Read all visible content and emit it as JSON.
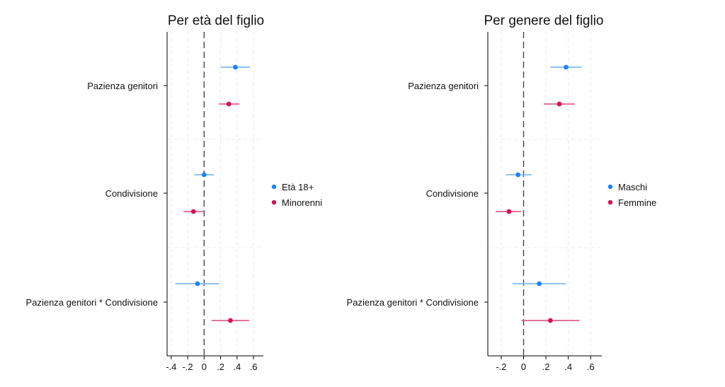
{
  "chart_data": [
    {
      "type": "scatter",
      "title": "Per età del figlio",
      "xlim": [
        -0.45,
        0.72
      ],
      "x_ticks": [
        "-.4",
        "-.2",
        "0",
        ".2",
        ".4",
        ".6"
      ],
      "x_tick_values": [
        -0.4,
        -0.2,
        0,
        0.2,
        0.4,
        0.6
      ],
      "categories": [
        "Pazienza genitori",
        "Condivisione",
        "Pazienza genitori * Condivisione"
      ],
      "reference_line": 0,
      "grid": true,
      "legend_position": "right",
      "series": [
        {
          "name": "Età 18+",
          "color": "#1a85ff",
          "ci_color": "#7fb9f5",
          "points": [
            {
              "category": "Pazienza genitori",
              "estimate": 0.38,
              "lower": 0.2,
              "upper": 0.56
            },
            {
              "category": "Condivisione",
              "estimate": 0.0,
              "lower": -0.12,
              "upper": 0.12
            },
            {
              "category": "Pazienza genitori * Condivisione",
              "estimate": -0.08,
              "lower": -0.35,
              "upper": 0.18
            }
          ]
        },
        {
          "name": "Minorenni",
          "color": "#d41159",
          "ci_color": "#e0608e",
          "points": [
            {
              "category": "Pazienza genitori",
              "estimate": 0.3,
              "lower": 0.18,
              "upper": 0.43
            },
            {
              "category": "Condivisione",
              "estimate": -0.13,
              "lower": -0.25,
              "upper": -0.01
            },
            {
              "category": "Pazienza genitori * Condivisione",
              "estimate": 0.32,
              "lower": 0.09,
              "upper": 0.55
            }
          ]
        }
      ]
    },
    {
      "type": "scatter",
      "title": "Per genere del figlio",
      "xlim": [
        -0.32,
        0.7
      ],
      "x_ticks": [
        "-.2",
        "0",
        ".2",
        ".4",
        ".6"
      ],
      "x_tick_values": [
        -0.2,
        0,
        0.2,
        0.4,
        0.6
      ],
      "categories": [
        "Pazienza genitori",
        "Condivisione",
        "Pazienza genitori * Condivisione"
      ],
      "reference_line": 0,
      "grid": true,
      "legend_position": "right",
      "series": [
        {
          "name": "Maschi",
          "color": "#1a85ff",
          "ci_color": "#7fb9f5",
          "points": [
            {
              "category": "Pazienza genitori",
              "estimate": 0.38,
              "lower": 0.24,
              "upper": 0.52
            },
            {
              "category": "Condivisione",
              "estimate": -0.05,
              "lower": -0.16,
              "upper": 0.07
            },
            {
              "category": "Pazienza genitori * Condivisione",
              "estimate": 0.14,
              "lower": -0.1,
              "upper": 0.38
            }
          ]
        },
        {
          "name": "Femmine",
          "color": "#d41159",
          "ci_color": "#e0608e",
          "points": [
            {
              "category": "Pazienza genitori",
              "estimate": 0.32,
              "lower": 0.18,
              "upper": 0.46
            },
            {
              "category": "Condivisione",
              "estimate": -0.13,
              "lower": -0.25,
              "upper": -0.02
            },
            {
              "category": "Pazienza genitori * Condivisione",
              "estimate": 0.24,
              "lower": -0.02,
              "upper": 0.5
            }
          ]
        }
      ]
    }
  ]
}
